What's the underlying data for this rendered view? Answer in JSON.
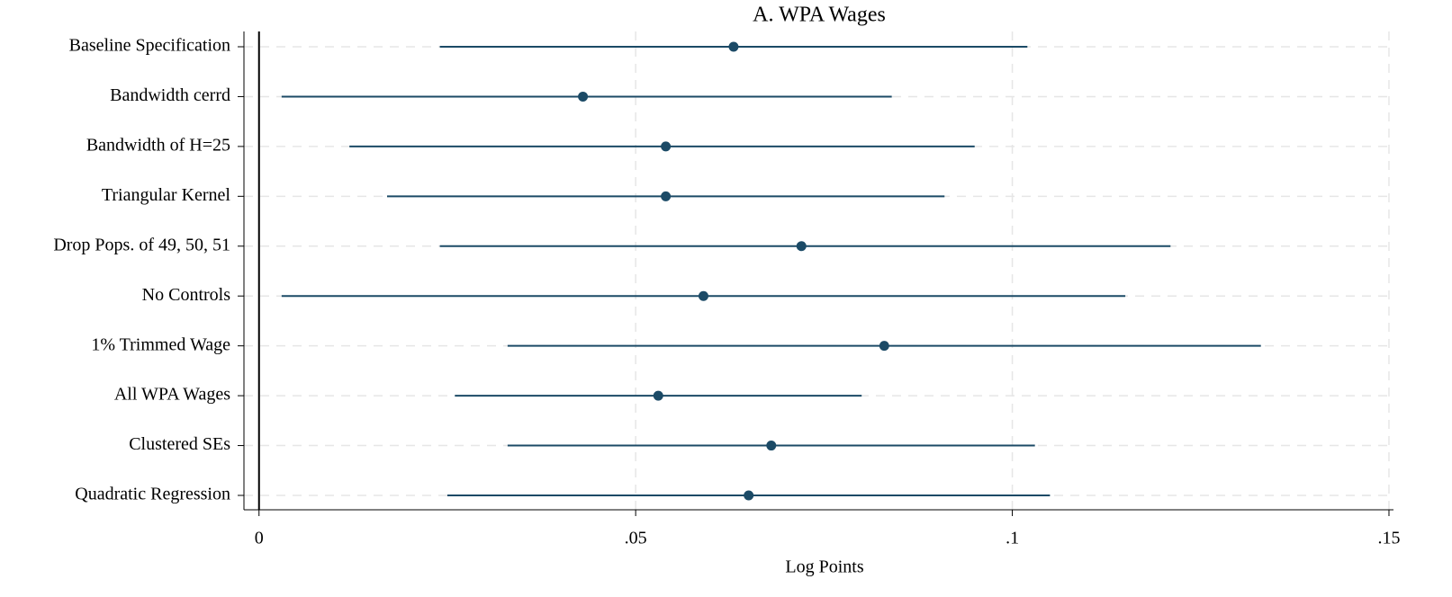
{
  "chart_data": {
    "type": "coefplot",
    "title": "A. WPA Wages",
    "x_label": "Log Points",
    "categories": [
      "Baseline Specification",
      "Bandwidth cerrd",
      "Bandwidth of H=25",
      "Triangular Kernel",
      "Drop Pops. of 49, 50, 51",
      "No Controls",
      "1% Trimmed Wage",
      "All WPA Wages",
      "Clustered SEs",
      "Quadratic Regression"
    ],
    "values": [
      0.063,
      0.043,
      0.054,
      0.054,
      0.072,
      0.059,
      0.083,
      0.053,
      0.068,
      0.065
    ],
    "lower": [
      0.024,
      0.003,
      0.012,
      0.017,
      0.024,
      0.003,
      0.033,
      0.026,
      0.033,
      0.025
    ],
    "upper": [
      0.102,
      0.084,
      0.095,
      0.091,
      0.121,
      0.115,
      0.133,
      0.08,
      0.103,
      0.105
    ],
    "color": "#1b4a66",
    "xlim": [
      -0.002,
      0.1506
    ],
    "xticks": [
      0,
      {
        "value": 0.05,
        "label": ".05"
      },
      {
        "value": 0.1,
        "label": ".1"
      },
      {
        "value": 0.15,
        "label": ".15"
      }
    ],
    "reference_line": 0,
    "grid": true
  }
}
